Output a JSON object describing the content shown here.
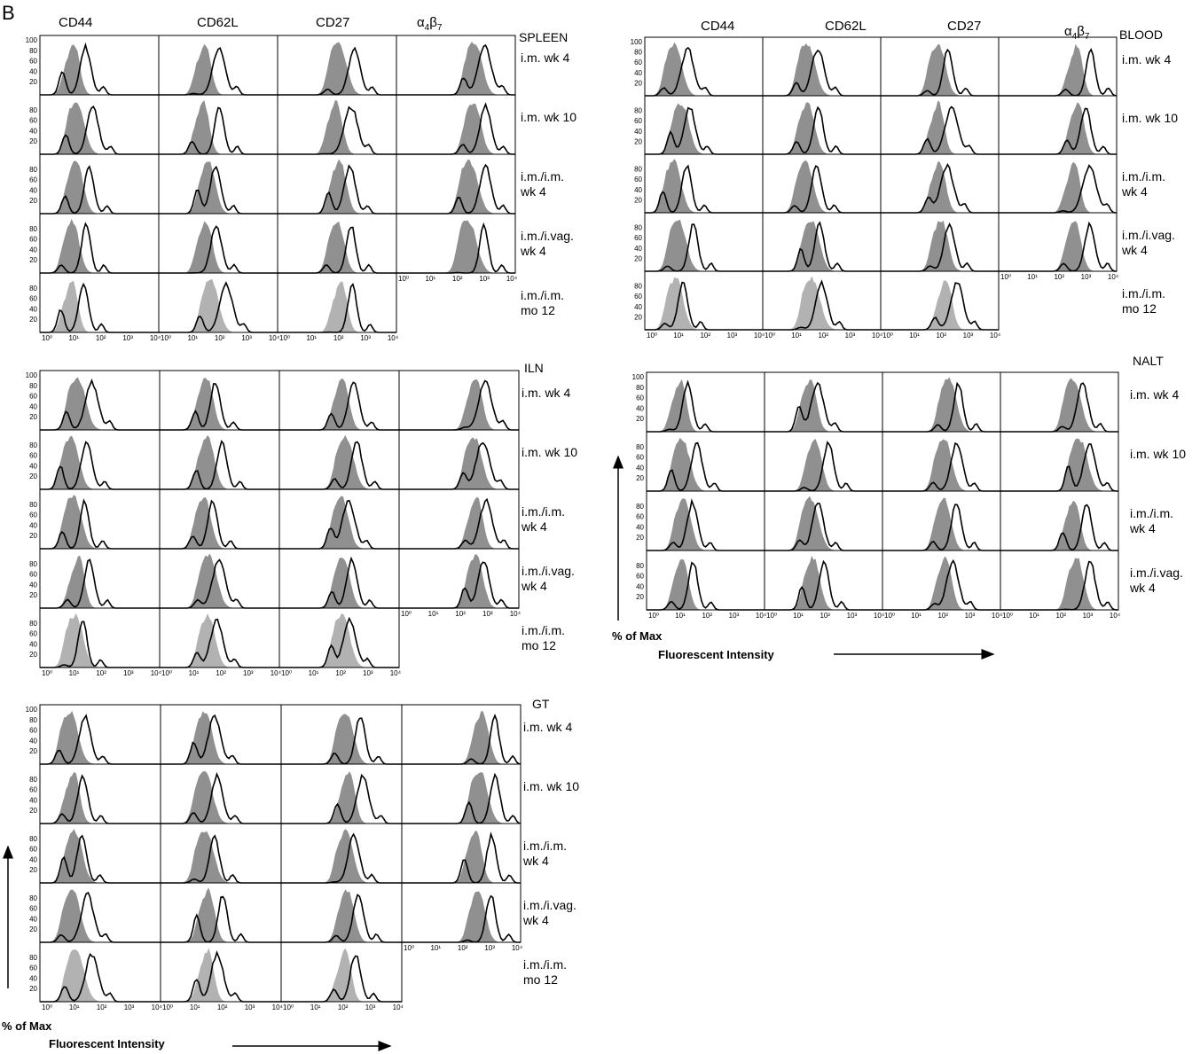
{
  "figure": {
    "panel_letter": "B",
    "markers": [
      "CD44",
      "CD62L",
      "CD27",
      "α4β7"
    ],
    "alpha_beta": {
      "alpha": "α",
      "sub4": "4",
      "beta": "β",
      "sub7": "7"
    },
    "y_axis_label": "% of Max",
    "x_axis_label": "Fluorescent Intensity",
    "y_ticks": [
      "100",
      "80",
      "60",
      "40",
      "20"
    ],
    "x_ticks_4": [
      "10⁰",
      "10¹",
      "10²",
      "10³",
      "10⁴"
    ],
    "colors": {
      "stained_histogram": "#7d7d7d",
      "fill_light": "#aaaaaa",
      "outline": "#000000"
    }
  },
  "chart_data": [
    {
      "type": "histogram-grid",
      "tissue": "SPLEEN",
      "columns": [
        "CD44",
        "CD62L",
        "CD27",
        "α4β7"
      ],
      "rows": [
        {
          "label_lines": [
            "i.m. wk 4"
          ],
          "n_panels": 4
        },
        {
          "label_lines": [
            "i.m. wk 10"
          ],
          "n_panels": 4
        },
        {
          "label_lines": [
            "i.m./i.m.",
            "wk 4"
          ],
          "n_panels": 4
        },
        {
          "label_lines": [
            "i.m./i.vag.",
            "wk 4"
          ],
          "n_panels": 4
        },
        {
          "label_lines": [
            "i.m./i.m.",
            "mo 12"
          ],
          "n_panels": 3
        }
      ],
      "y_range": [
        0,
        100
      ],
      "x_scale": "log",
      "x_range": [
        1,
        10000
      ]
    },
    {
      "type": "histogram-grid",
      "tissue": "BLOOD",
      "columns": [
        "CD44",
        "CD62L",
        "CD27",
        "α4β7"
      ],
      "rows": [
        {
          "label_lines": [
            "i.m. wk 4"
          ],
          "n_panels": 4
        },
        {
          "label_lines": [
            "i.m. wk 10"
          ],
          "n_panels": 4
        },
        {
          "label_lines": [
            "i.m./i.m.",
            "wk 4"
          ],
          "n_panels": 4
        },
        {
          "label_lines": [
            "i.m./i.vag.",
            "wk 4"
          ],
          "n_panels": 4
        },
        {
          "label_lines": [
            "i.m./i.m.",
            "mo 12"
          ],
          "n_panels": 3
        }
      ],
      "y_range": [
        0,
        100
      ],
      "x_scale": "log",
      "x_range": [
        1,
        10000
      ]
    },
    {
      "type": "histogram-grid",
      "tissue": "ILN",
      "columns": [
        "CD44",
        "CD62L",
        "CD27",
        "α4β7"
      ],
      "rows": [
        {
          "label_lines": [
            "i.m. wk 4"
          ],
          "n_panels": 4
        },
        {
          "label_lines": [
            "i.m. wk 10"
          ],
          "n_panels": 4
        },
        {
          "label_lines": [
            "i.m./i.m.",
            "wk 4"
          ],
          "n_panels": 4
        },
        {
          "label_lines": [
            "i.m./i.vag.",
            "wk 4"
          ],
          "n_panels": 4
        },
        {
          "label_lines": [
            "i.m./i.m.",
            "mo 12"
          ],
          "n_panels": 3
        }
      ],
      "y_range": [
        0,
        100
      ],
      "x_scale": "log",
      "x_range": [
        1,
        10000
      ]
    },
    {
      "type": "histogram-grid",
      "tissue": "NALT",
      "columns": [
        "CD44",
        "CD62L",
        "CD27",
        "α4β7"
      ],
      "rows": [
        {
          "label_lines": [
            "i.m. wk 4"
          ],
          "n_panels": 4
        },
        {
          "label_lines": [
            "i.m. wk 10"
          ],
          "n_panels": 4
        },
        {
          "label_lines": [
            "i.m./i.m.",
            "wk 4"
          ],
          "n_panels": 4
        },
        {
          "label_lines": [
            "i.m./i.vag.",
            "wk 4"
          ],
          "n_panels": 4
        }
      ],
      "y_range": [
        0,
        100
      ],
      "x_scale": "log",
      "x_range": [
        1,
        10000
      ]
    },
    {
      "type": "histogram-grid",
      "tissue": "GT",
      "columns": [
        "CD44",
        "CD62L",
        "CD27",
        "α4β7"
      ],
      "rows": [
        {
          "label_lines": [
            "i.m. wk 4"
          ],
          "n_panels": 4
        },
        {
          "label_lines": [
            "i.m. wk 10"
          ],
          "n_panels": 4
        },
        {
          "label_lines": [
            "i.m./i.m.",
            "wk 4"
          ],
          "n_panels": 4
        },
        {
          "label_lines": [
            "i.m./i.vag.",
            "wk 4"
          ],
          "n_panels": 4
        },
        {
          "label_lines": [
            "i.m./i.m.",
            "mo 12"
          ],
          "n_panels": 3
        }
      ],
      "y_range": [
        0,
        100
      ],
      "x_scale": "log",
      "x_range": [
        1,
        10000
      ]
    }
  ]
}
